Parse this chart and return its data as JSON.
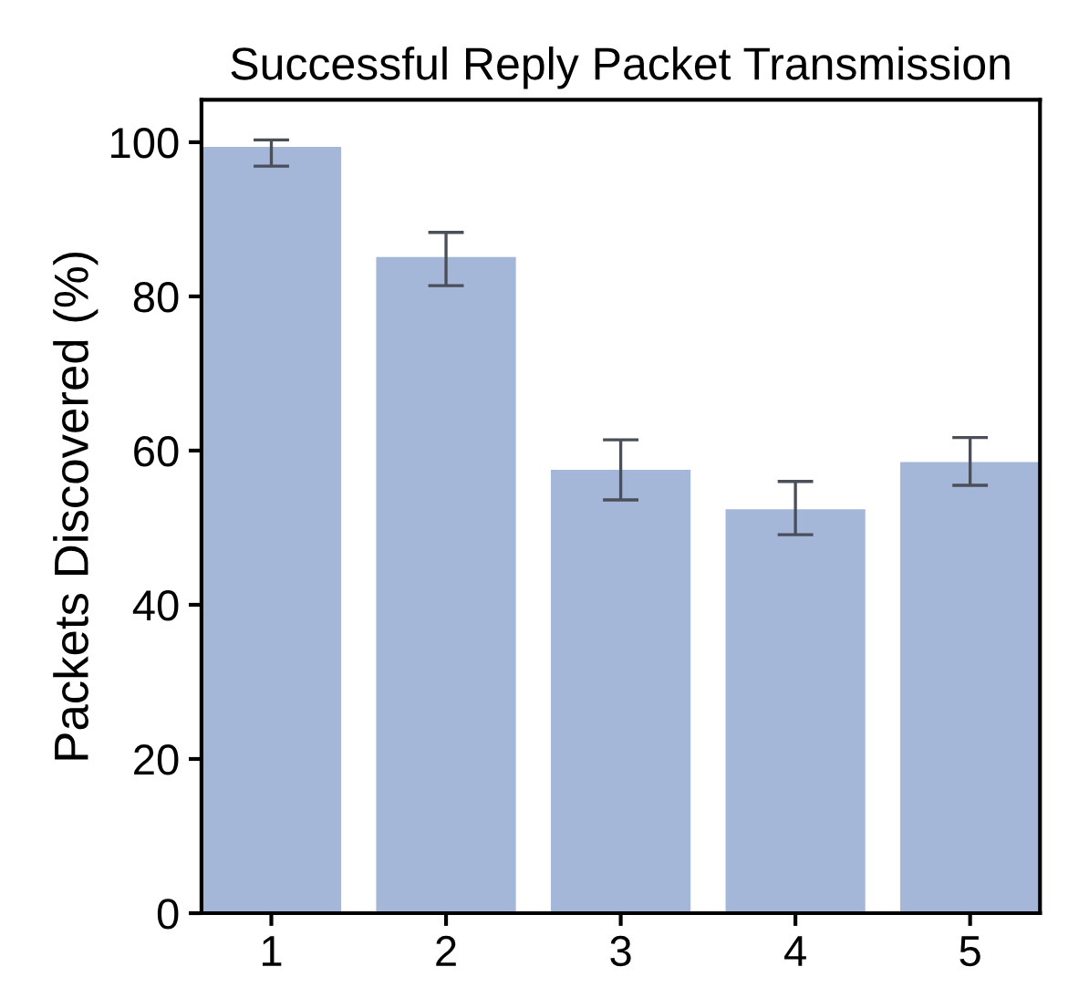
{
  "chart_data": {
    "type": "bar",
    "title": "Successful Reply Packet Transmission",
    "ylabel": "Packets Discovered (%)",
    "categories": [
      "1",
      "2",
      "3",
      "4",
      "5"
    ],
    "values": [
      99.4,
      85.1,
      57.5,
      52.4,
      58.5
    ],
    "errors": [
      [
        96.9,
        100.3
      ],
      [
        81.4,
        88.3
      ],
      [
        53.6,
        61.4
      ],
      [
        49.1,
        56.0
      ],
      [
        55.5,
        61.7
      ]
    ],
    "color": "#a4b7d8",
    "ylim": [
      0,
      105.5
    ],
    "yticks": [
      0,
      20,
      40,
      60,
      80,
      100
    ],
    "grid": false,
    "legend": false
  }
}
